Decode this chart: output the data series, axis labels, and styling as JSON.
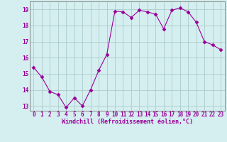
{
  "x": [
    0,
    1,
    2,
    3,
    4,
    5,
    6,
    7,
    8,
    9,
    10,
    11,
    12,
    13,
    14,
    15,
    16,
    17,
    18,
    19,
    20,
    21,
    22,
    23
  ],
  "y": [
    15.4,
    14.8,
    13.9,
    13.7,
    12.9,
    13.5,
    13.0,
    14.0,
    15.2,
    16.2,
    18.9,
    18.85,
    18.5,
    18.95,
    18.85,
    18.7,
    17.8,
    18.95,
    19.1,
    18.85,
    18.2,
    17.0,
    16.8,
    16.5
  ],
  "line_color": "#990099",
  "marker": "D",
  "marker_size": 2.5,
  "bg_color": "#d5eef0",
  "grid_color": "#aacccc",
  "xlabel": "Windchill (Refroidissement éolien,°C)",
  "xlabel_fontsize": 6.0,
  "tick_fontsize": 5.5,
  "ylim": [
    12.7,
    19.5
  ],
  "yticks": [
    13,
    14,
    15,
    16,
    17,
    18,
    19
  ],
  "xticks": [
    0,
    1,
    2,
    3,
    4,
    5,
    6,
    7,
    8,
    9,
    10,
    11,
    12,
    13,
    14,
    15,
    16,
    17,
    18,
    19,
    20,
    21,
    22,
    23
  ],
  "spine_color": "#777777"
}
